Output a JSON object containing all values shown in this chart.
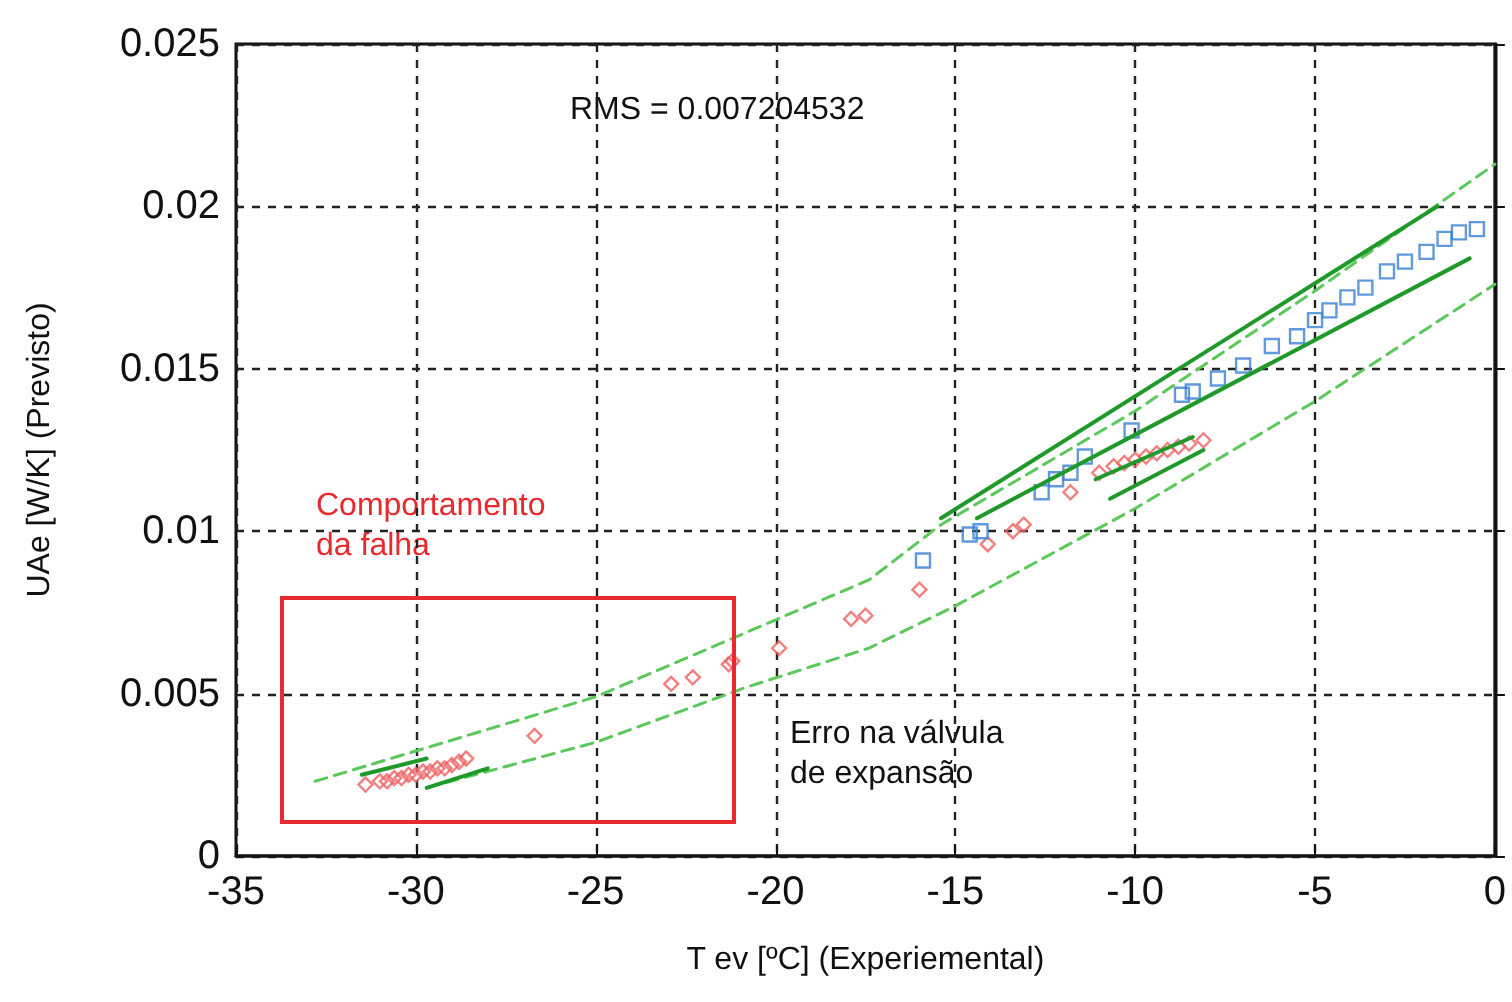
{
  "chart_data": {
    "type": "scatter",
    "xlabel": "T ev [ºC] (Experiemental)",
    "ylabel": "UAe [W/K] (Previsto)",
    "xlim": [
      -35,
      0
    ],
    "xticks": [
      -35,
      -30,
      -25,
      -20,
      -15,
      -10,
      -5,
      0
    ],
    "ylim": [
      0,
      0.025
    ],
    "yticks": [
      0,
      0.005,
      0.01,
      0.015,
      0.02,
      0.025
    ],
    "grid": true,
    "annotations": [
      "RMS = 0.007204532",
      "Comportamento da falha",
      "Erro na válvula de expansão"
    ],
    "series": [
      {
        "marker": "diamond",
        "color": "#f06060",
        "x": [
          -31.4,
          -31.0,
          -30.8,
          -30.6,
          -30.4,
          -30.2,
          -30.0,
          -29.8,
          -29.6,
          -29.4,
          -29.2,
          -29.0,
          -28.8,
          -28.6,
          -26.7,
          -22.9,
          -22.3,
          -21.3,
          -21.2,
          -19.9,
          -17.9,
          -17.5,
          -16.0,
          -14.1,
          -13.4,
          -13.1,
          -11.8,
          -11.0,
          -10.6,
          -10.3,
          -10.0,
          -9.7,
          -9.4,
          -9.1,
          -8.8,
          -8.5,
          -8.1
        ],
        "values": [
          0.0022,
          0.0023,
          0.0023,
          0.0024,
          0.0024,
          0.0025,
          0.0025,
          0.0026,
          0.0026,
          0.0027,
          0.0027,
          0.0028,
          0.0029,
          0.003,
          0.0037,
          0.0053,
          0.0055,
          0.0059,
          0.006,
          0.0064,
          0.0073,
          0.0074,
          0.0082,
          0.0096,
          0.01,
          0.0102,
          0.0112,
          0.0118,
          0.012,
          0.0121,
          0.0122,
          0.0123,
          0.0124,
          0.0125,
          0.0126,
          0.0127,
          0.0128
        ]
      },
      {
        "marker": "square",
        "color": "#3a7fd5",
        "x": [
          -15.9,
          -14.6,
          -14.3,
          -12.6,
          -12.2,
          -11.8,
          -11.4,
          -10.1,
          -8.7,
          -8.4,
          -7.7,
          -7.0,
          -6.2,
          -5.5,
          -5.0,
          -4.6,
          -4.1,
          -3.6,
          -3.0,
          -2.5,
          -1.9,
          -1.4,
          -1.0,
          -0.5
        ],
        "values": [
          0.0091,
          0.0099,
          0.01,
          0.0112,
          0.0116,
          0.0118,
          0.0123,
          0.0131,
          0.0142,
          0.0143,
          0.0147,
          0.0151,
          0.0157,
          0.016,
          0.0165,
          0.0168,
          0.0172,
          0.0175,
          0.018,
          0.0183,
          0.0186,
          0.019,
          0.0192,
          0.0193
        ]
      },
      {
        "type": "line",
        "line_style": "dashed",
        "color": "#5cc85c",
        "x": [
          -32.8,
          -25,
          -17.4,
          -15.4,
          -10,
          -5,
          0
        ],
        "values": [
          0.0023,
          0.0049,
          0.0085,
          0.0102,
          0.0137,
          0.0174,
          0.0213
        ]
      },
      {
        "type": "line",
        "line_style": "dashed",
        "color": "#5cc85c",
        "x": [
          -29.7,
          -25,
          -20.8,
          -17.4,
          -15,
          -10,
          -5,
          0
        ],
        "values": [
          0.0021,
          0.0035,
          0.0052,
          0.0064,
          0.0077,
          0.0107,
          0.014,
          0.0176
        ]
      },
      {
        "type": "line",
        "line_style": "solid",
        "color": "#1f9a2a",
        "x": [
          -15.4,
          -1.6
        ],
        "values": [
          0.0104,
          0.02
        ]
      },
      {
        "type": "line",
        "line_style": "solid",
        "color": "#1f9a2a",
        "x": [
          -14.4,
          -0.7
        ],
        "values": [
          0.0104,
          0.0184
        ]
      },
      {
        "type": "line",
        "line_style": "solid",
        "color": "#1f9a2a",
        "x": [
          -11.1,
          -8.4
        ],
        "values": [
          0.0116,
          0.0129
        ]
      },
      {
        "type": "line",
        "line_style": "solid",
        "color": "#1f9a2a",
        "x": [
          -10.7,
          -8.1
        ],
        "values": [
          0.011,
          0.0125
        ]
      },
      {
        "type": "line",
        "line_style": "solid",
        "color": "#1f9a2a",
        "x": [
          -31.5,
          -29.7
        ],
        "values": [
          0.0025,
          0.003
        ]
      },
      {
        "type": "line",
        "line_style": "solid",
        "color": "#1f9a2a",
        "x": [
          -29.7,
          -28.0
        ],
        "values": [
          0.0021,
          0.0027
        ]
      }
    ]
  }
}
